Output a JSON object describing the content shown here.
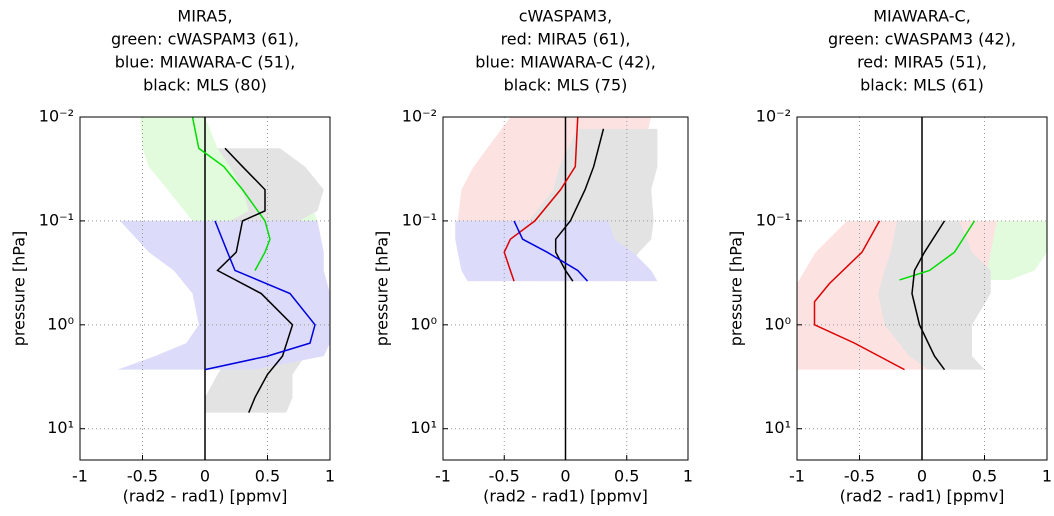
{
  "chart_data": [
    {
      "type": "line",
      "title": [
        "MIRA5,",
        "green: cWASPAM3 (61),",
        "blue: MIAWARA-C (51),",
        "black: MLS (80)"
      ],
      "xlabel": "(rad2 - rad1) [ppmv]",
      "ylabel": "pressure [hPa]",
      "xlim": [
        -1,
        1
      ],
      "xticks": [
        -1,
        -0.5,
        0,
        0.5,
        1
      ],
      "ylim": [
        0.01,
        20
      ],
      "ylog": true,
      "yreverse": true,
      "grid": true,
      "yticks": [
        {
          "value": 0.01,
          "label": "10⁻²"
        },
        {
          "value": 0.1,
          "label": "10⁻¹"
        },
        {
          "value": 1,
          "label": "10⁰"
        },
        {
          "value": 10,
          "label": "10¹"
        }
      ],
      "series": [
        {
          "color": "#00dd00",
          "band_color": "#e2fbdc",
          "pressure": [
            0.01,
            0.02,
            0.03,
            0.05,
            0.1,
            0.15,
            0.2,
            0.3
          ],
          "values": [
            -0.1,
            -0.05,
            0.15,
            0.3,
            0.48,
            0.52,
            0.48,
            0.4
          ],
          "lower": [
            -0.52,
            -0.5,
            -0.45,
            -0.3,
            -0.1,
            0,
            0.1,
            0.2
          ],
          "upper": [
            0,
            0.1,
            0.4,
            0.8,
            0.9,
            0.85,
            0.8,
            0.7
          ]
        },
        {
          "color": "#000000",
          "band_color": "#e3e3e3",
          "pressure": [
            0.02,
            0.03,
            0.05,
            0.08,
            0.1,
            0.2,
            0.3,
            0.5,
            1,
            2,
            3,
            5,
            7
          ],
          "values": [
            0.16,
            0.3,
            0.48,
            0.48,
            0.3,
            0.25,
            0.1,
            0.45,
            0.7,
            0.62,
            0.5,
            0.4,
            0.35
          ],
          "lower": [
            0.1,
            0.2,
            0.3,
            0.35,
            0.2,
            0,
            -0.2,
            0,
            0.3,
            0.2,
            0.1,
            0,
            0
          ],
          "upper": [
            0.6,
            0.8,
            0.95,
            0.9,
            0.75,
            0.8,
            0.9,
            1,
            1,
            0.8,
            0.7,
            0.7,
            0.65
          ]
        },
        {
          "color": "#0000dd",
          "band_color": "#dcdcfa",
          "pressure": [
            0.1,
            0.2,
            0.3,
            0.5,
            1,
            1.5,
            2,
            2.7
          ],
          "values": [
            0.08,
            0.18,
            0.24,
            0.68,
            0.88,
            0.84,
            0.5,
            0
          ],
          "lower": [
            -0.68,
            -0.45,
            -0.25,
            -0.1,
            -0.05,
            -0.15,
            -0.4,
            -0.7
          ],
          "upper": [
            0.9,
            0.95,
            0.95,
            1,
            1,
            1,
            0.95,
            0.4
          ]
        }
      ]
    },
    {
      "type": "line",
      "title": [
        "cWASPAM3,",
        "red: MIRA5 (61),",
        "blue: MIAWARA-C (42),",
        "black: MLS (75)"
      ],
      "xlabel": "(rad2 - rad1) [ppmv]",
      "ylabel": "pressure [hPa]",
      "xlim": [
        -1,
        1
      ],
      "xticks": [
        -1,
        -0.5,
        0,
        0.5,
        1
      ],
      "ylim": [
        0.01,
        20
      ],
      "ylog": true,
      "yreverse": true,
      "grid": true,
      "yticks": [
        {
          "value": 0.01,
          "label": "10⁻²"
        },
        {
          "value": 0.1,
          "label": "10⁻¹"
        },
        {
          "value": 1,
          "label": "10⁰"
        },
        {
          "value": 10,
          "label": "10¹"
        }
      ],
      "series": [
        {
          "color": "#dd0000",
          "band_color": "#fde2e2",
          "pressure": [
            0.01,
            0.03,
            0.05,
            0.1,
            0.15,
            0.2,
            0.3,
            0.38
          ],
          "values": [
            0.1,
            0.08,
            -0.04,
            -0.25,
            -0.45,
            -0.5,
            -0.45,
            -0.42
          ],
          "lower": [
            -0.45,
            -0.75,
            -0.85,
            -0.88,
            -0.9,
            -0.85,
            -0.75,
            -0.7
          ],
          "upper": [
            0.7,
            0.6,
            0.5,
            0.3,
            0,
            -0.1,
            -0.1,
            -0.1
          ]
        },
        {
          "color": "#000000",
          "band_color": "#e3e3e3",
          "pressure": [
            0.013,
            0.03,
            0.05,
            0.1,
            0.15,
            0.2,
            0.3,
            0.38
          ],
          "values": [
            0.31,
            0.23,
            0.16,
            0.04,
            -0.08,
            -0.08,
            0,
            0.06
          ],
          "lower": [
            0.1,
            -0.05,
            -0.1,
            -0.3,
            -0.35,
            -0.35,
            -0.3,
            -0.25
          ],
          "upper": [
            0.75,
            0.75,
            0.7,
            0.72,
            0.7,
            0.6,
            0.5,
            0.4
          ]
        },
        {
          "color": "#0000dd",
          "band_color": "#dcdcfa",
          "pressure": [
            0.1,
            0.15,
            0.2,
            0.3,
            0.38
          ],
          "values": [
            -0.42,
            -0.35,
            -0.15,
            0.1,
            0.18
          ],
          "lower": [
            -0.9,
            -0.9,
            -0.88,
            -0.85,
            -0.8
          ],
          "upper": [
            0.35,
            0.4,
            0.55,
            0.7,
            0.75
          ]
        }
      ]
    },
    {
      "type": "line",
      "title": [
        "MIAWARA-C,",
        "green: cWASPAM3 (42),",
        "red: MIRA5 (51),",
        "black: MLS (61)"
      ],
      "xlabel": "(rad2 - rad1) [ppmv]",
      "ylabel": "pressure [hPa]",
      "xlim": [
        -1,
        1
      ],
      "xticks": [
        -1,
        -0.5,
        0,
        0.5,
        1
      ],
      "ylim": [
        0.01,
        20
      ],
      "ylog": true,
      "yreverse": true,
      "grid": true,
      "yticks": [
        {
          "value": 0.01,
          "label": "10⁻²"
        },
        {
          "value": 0.1,
          "label": "10⁻¹"
        },
        {
          "value": 1,
          "label": "10⁰"
        },
        {
          "value": 10,
          "label": "10¹"
        }
      ],
      "series": [
        {
          "color": "#00dd00",
          "band_color": "#e2fbdc",
          "pressure": [
            0.1,
            0.2,
            0.3,
            0.37
          ],
          "values": [
            0.42,
            0.26,
            0.06,
            -0.18
          ],
          "lower": [
            -0.5,
            -0.3,
            -0.25,
            -0.2
          ],
          "upper": [
            1,
            1,
            0.9,
            0.7
          ]
        },
        {
          "color": "#dd0000",
          "band_color": "#fde2e2",
          "pressure": [
            0.1,
            0.2,
            0.4,
            0.6,
            1,
            1.5,
            2.7
          ],
          "values": [
            -0.34,
            -0.48,
            -0.74,
            -0.86,
            -0.86,
            -0.54,
            -0.14
          ],
          "lower": [
            -0.6,
            -0.85,
            -1,
            -1,
            -1,
            -1,
            -1
          ],
          "upper": [
            0.6,
            0.55,
            0.5,
            0.4,
            0.3,
            0.25,
            0.05
          ]
        },
        {
          "color": "#000000",
          "band_color": "#e3e3e3",
          "pressure": [
            0.1,
            0.2,
            0.3,
            0.5,
            1,
            2,
            2.7
          ],
          "values": [
            0.18,
            0.02,
            -0.06,
            -0.08,
            -0.02,
            0.1,
            0.18
          ],
          "lower": [
            -0.2,
            -0.25,
            -0.3,
            -0.35,
            -0.3,
            -0.1,
            0.05
          ],
          "upper": [
            0.3,
            0.4,
            0.55,
            0.55,
            0.4,
            0.4,
            0.5
          ]
        }
      ]
    }
  ]
}
